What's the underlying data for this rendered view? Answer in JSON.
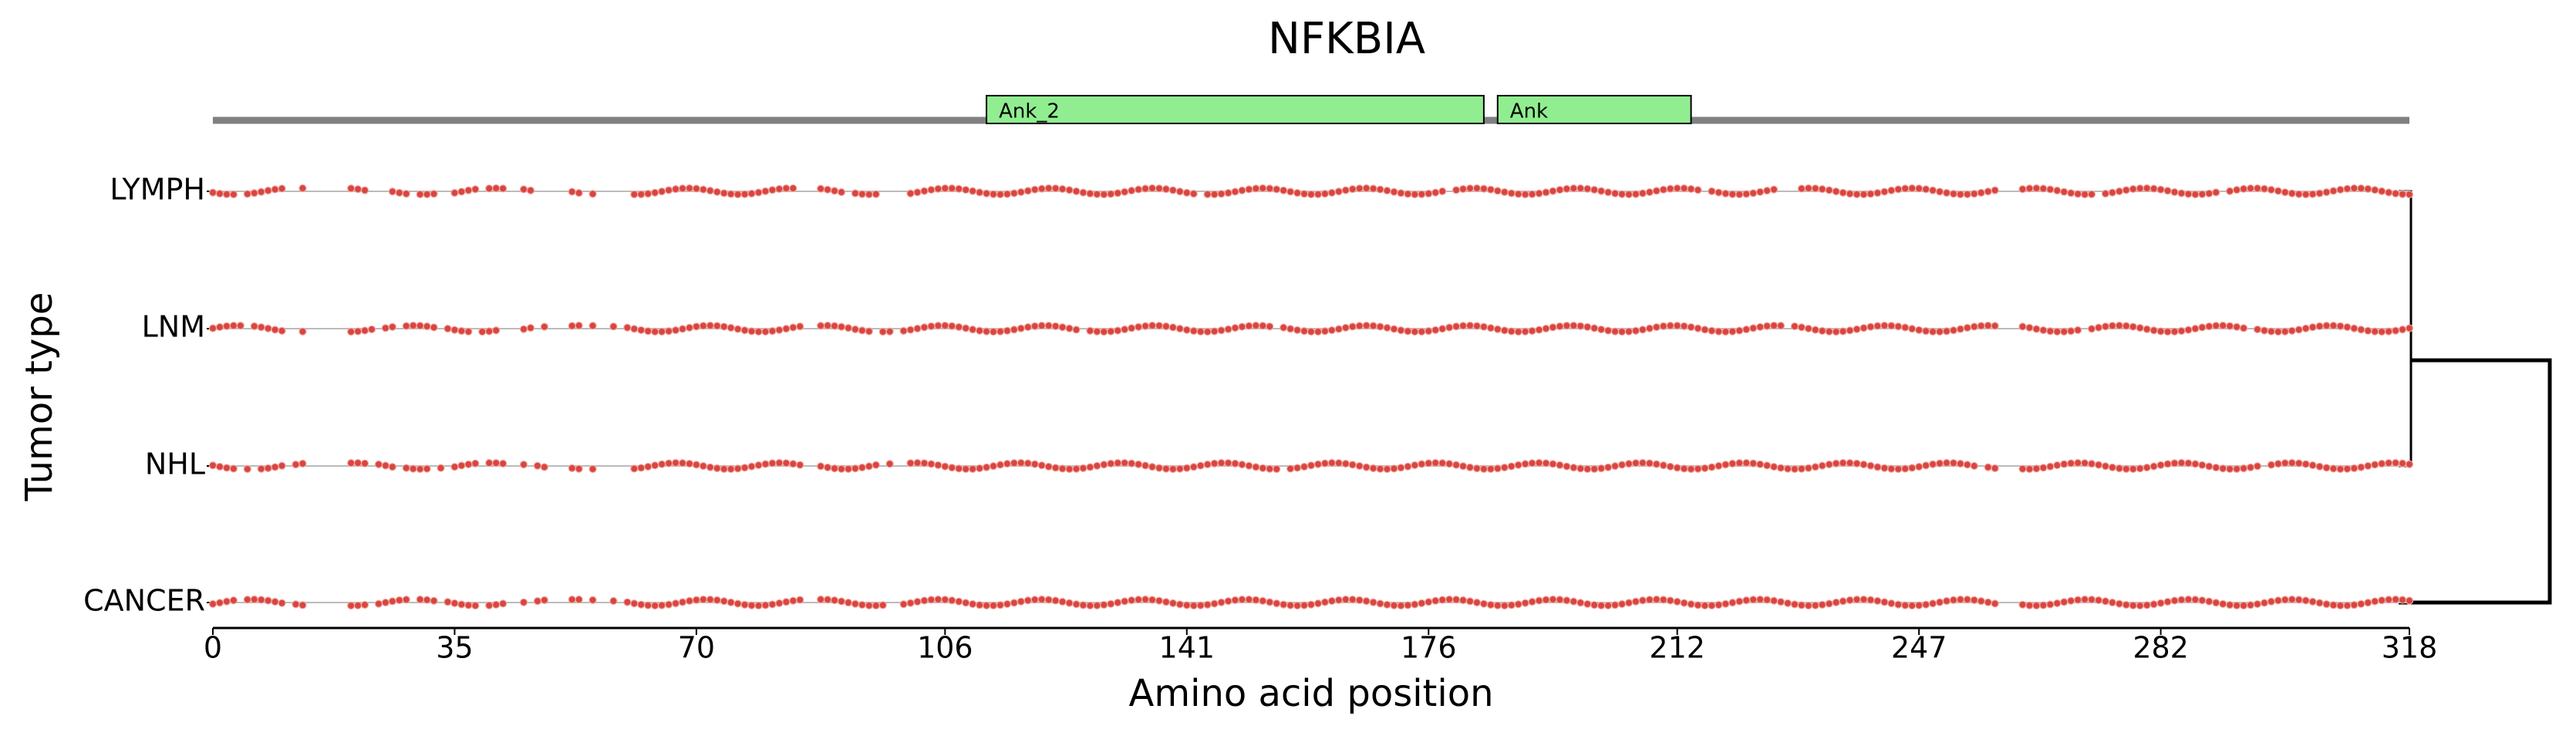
{
  "chart_data": {
    "type": "strip",
    "title": "NFKBIA",
    "x_label": "Amino acid position",
    "y_label": "Tumor type",
    "xlim": [
      0,
      318
    ],
    "xticks": [
      0,
      35,
      70,
      106,
      141,
      176,
      212,
      247,
      282,
      318
    ],
    "domains": [
      {
        "name": "Ank_2",
        "start": 112,
        "end": 184,
        "color": "#90ee90"
      },
      {
        "name": "Ank",
        "start": 186,
        "end": 214,
        "color": "#90ee90"
      }
    ],
    "series": [
      {
        "name": "LYMPH",
        "color": "#d9453f",
        "x": [
          0,
          1,
          2,
          3,
          5,
          6,
          7,
          8,
          9,
          10,
          13,
          20,
          21,
          22,
          26,
          27,
          28,
          30,
          31,
          32,
          35,
          36,
          37,
          38,
          40,
          41,
          42,
          45,
          46,
          52,
          53,
          55,
          61,
          62,
          63,
          64,
          65,
          66,
          67,
          68,
          69,
          70,
          71,
          72,
          73,
          74,
          75,
          76,
          77,
          78,
          79,
          80,
          81,
          82,
          83,
          84,
          88,
          89,
          90,
          91,
          93,
          94,
          95,
          96,
          101,
          102,
          103,
          104,
          105,
          106,
          107,
          108,
          109,
          110,
          111,
          112,
          113,
          114,
          115,
          116,
          117,
          118,
          119,
          120,
          121,
          122,
          123,
          124,
          125,
          126,
          127,
          128,
          129,
          130,
          131,
          132,
          133,
          134,
          135,
          136,
          137,
          138,
          139,
          140,
          141,
          142,
          144,
          145,
          146,
          147,
          148,
          149,
          150,
          151,
          152,
          153,
          154,
          155,
          156,
          157,
          158,
          159,
          160,
          161,
          162,
          163,
          164,
          165,
          166,
          167,
          168,
          169,
          170,
          171,
          172,
          173,
          174,
          175,
          176,
          177,
          178,
          180,
          181,
          182,
          183,
          184,
          185,
          186,
          187,
          188,
          189,
          190,
          191,
          192,
          193,
          194,
          195,
          196,
          197,
          198,
          199,
          200,
          201,
          202,
          203,
          204,
          205,
          206,
          207,
          208,
          209,
          210,
          211,
          212,
          213,
          214,
          215,
          217,
          218,
          219,
          220,
          221,
          222,
          223,
          224,
          225,
          226,
          230,
          231,
          232,
          233,
          234,
          235,
          236,
          237,
          238,
          239,
          240,
          241,
          242,
          243,
          244,
          245,
          246,
          247,
          248,
          249,
          250,
          251,
          252,
          253,
          254,
          255,
          256,
          257,
          258,
          262,
          263,
          264,
          265,
          266,
          267,
          268,
          269,
          270,
          271,
          272,
          274,
          275,
          276,
          277,
          278,
          279,
          280,
          281,
          282,
          283,
          284,
          285,
          286,
          287,
          288,
          289,
          290,
          292,
          293,
          294,
          295,
          296,
          297,
          298,
          299,
          300,
          301,
          302,
          303,
          304,
          305,
          306,
          307,
          308,
          309,
          310,
          311,
          312,
          313,
          314,
          315,
          316,
          317,
          318
        ]
      },
      {
        "name": "LNM",
        "color": "#d9453f",
        "x": [
          0,
          1,
          2,
          3,
          4,
          6,
          7,
          8,
          9,
          10,
          13,
          20,
          21,
          22,
          23,
          25,
          26,
          28,
          29,
          30,
          31,
          32,
          34,
          35,
          36,
          37,
          39,
          40,
          41,
          45,
          46,
          48,
          52,
          53,
          55,
          58,
          60,
          61,
          62,
          63,
          64,
          65,
          66,
          67,
          68,
          69,
          70,
          71,
          72,
          73,
          74,
          75,
          76,
          77,
          78,
          79,
          80,
          81,
          82,
          83,
          84,
          85,
          88,
          89,
          90,
          91,
          92,
          93,
          94,
          95,
          97,
          98,
          100,
          101,
          102,
          103,
          104,
          105,
          106,
          107,
          108,
          109,
          110,
          111,
          112,
          113,
          114,
          115,
          116,
          117,
          118,
          119,
          120,
          121,
          122,
          123,
          124,
          125,
          127,
          128,
          129,
          130,
          131,
          132,
          133,
          134,
          135,
          136,
          137,
          138,
          139,
          140,
          141,
          142,
          143,
          144,
          145,
          146,
          147,
          148,
          149,
          150,
          151,
          152,
          153,
          155,
          156,
          157,
          158,
          159,
          160,
          161,
          162,
          163,
          164,
          165,
          166,
          167,
          168,
          169,
          170,
          171,
          172,
          173,
          174,
          175,
          176,
          177,
          178,
          179,
          180,
          181,
          182,
          183,
          184,
          185,
          186,
          187,
          188,
          189,
          190,
          191,
          192,
          193,
          194,
          195,
          196,
          197,
          198,
          199,
          200,
          201,
          202,
          203,
          204,
          205,
          206,
          207,
          208,
          209,
          210,
          211,
          212,
          213,
          214,
          215,
          216,
          217,
          218,
          219,
          220,
          221,
          222,
          223,
          224,
          225,
          226,
          227,
          229,
          230,
          231,
          232,
          233,
          234,
          235,
          236,
          237,
          238,
          239,
          240,
          241,
          242,
          243,
          244,
          245,
          246,
          247,
          248,
          249,
          250,
          251,
          252,
          253,
          254,
          255,
          256,
          257,
          258,
          262,
          263,
          264,
          265,
          266,
          267,
          268,
          269,
          270,
          272,
          273,
          274,
          275,
          276,
          277,
          278,
          279,
          280,
          281,
          282,
          283,
          284,
          285,
          286,
          287,
          288,
          289,
          290,
          291,
          292,
          293,
          294,
          296,
          297,
          298,
          299,
          300,
          301,
          302,
          303,
          304,
          305,
          306,
          307,
          308,
          309,
          310,
          311,
          312,
          313,
          314,
          315,
          316,
          317,
          318
        ]
      },
      {
        "name": "NHL",
        "color": "#d9453f",
        "x": [
          0,
          1,
          2,
          3,
          5,
          7,
          8,
          9,
          10,
          12,
          13,
          20,
          21,
          22,
          24,
          25,
          26,
          28,
          29,
          30,
          31,
          33,
          35,
          36,
          37,
          38,
          40,
          41,
          42,
          45,
          47,
          48,
          52,
          53,
          55,
          61,
          62,
          63,
          64,
          65,
          66,
          67,
          68,
          69,
          70,
          71,
          72,
          73,
          74,
          75,
          76,
          77,
          78,
          79,
          80,
          81,
          82,
          83,
          84,
          85,
          88,
          89,
          90,
          91,
          92,
          93,
          94,
          95,
          96,
          98,
          101,
          102,
          103,
          104,
          105,
          106,
          107,
          108,
          109,
          110,
          111,
          112,
          113,
          114,
          115,
          116,
          117,
          118,
          119,
          120,
          121,
          122,
          123,
          124,
          125,
          126,
          127,
          128,
          129,
          130,
          131,
          132,
          133,
          134,
          135,
          136,
          137,
          138,
          139,
          140,
          141,
          142,
          143,
          144,
          145,
          146,
          147,
          148,
          149,
          150,
          151,
          152,
          153,
          154,
          156,
          157,
          158,
          159,
          160,
          161,
          162,
          163,
          164,
          165,
          166,
          167,
          168,
          169,
          170,
          171,
          172,
          173,
          174,
          175,
          176,
          177,
          178,
          179,
          180,
          181,
          182,
          183,
          184,
          185,
          186,
          187,
          188,
          189,
          190,
          191,
          192,
          193,
          194,
          195,
          196,
          197,
          198,
          199,
          200,
          201,
          202,
          203,
          204,
          205,
          206,
          207,
          208,
          209,
          210,
          211,
          212,
          213,
          214,
          215,
          216,
          217,
          218,
          219,
          220,
          221,
          222,
          223,
          224,
          225,
          226,
          227,
          228,
          229,
          230,
          231,
          232,
          233,
          234,
          235,
          236,
          237,
          238,
          239,
          240,
          241,
          242,
          243,
          244,
          245,
          246,
          247,
          248,
          249,
          250,
          251,
          252,
          253,
          254,
          255,
          257,
          258,
          262,
          263,
          264,
          265,
          266,
          267,
          268,
          269,
          270,
          271,
          272,
          273,
          274,
          275,
          276,
          277,
          278,
          279,
          280,
          281,
          282,
          283,
          284,
          285,
          286,
          287,
          288,
          289,
          290,
          291,
          292,
          293,
          294,
          295,
          296,
          298,
          299,
          300,
          301,
          302,
          303,
          304,
          305,
          306,
          307,
          308,
          309,
          310,
          311,
          312,
          313,
          314,
          315,
          316,
          317,
          318
        ]
      },
      {
        "name": "CANCER",
        "color": "#d9453f",
        "x": [
          0,
          1,
          2,
          3,
          5,
          6,
          7,
          8,
          9,
          10,
          12,
          13,
          20,
          21,
          22,
          24,
          25,
          26,
          27,
          28,
          30,
          31,
          32,
          34,
          35,
          36,
          37,
          38,
          40,
          41,
          42,
          45,
          47,
          48,
          52,
          53,
          55,
          58,
          60,
          61,
          62,
          63,
          64,
          65,
          66,
          67,
          68,
          69,
          70,
          71,
          72,
          73,
          74,
          75,
          76,
          77,
          78,
          79,
          80,
          81,
          82,
          83,
          84,
          85,
          88,
          89,
          90,
          91,
          92,
          93,
          94,
          95,
          96,
          97,
          100,
          101,
          102,
          103,
          104,
          105,
          106,
          107,
          108,
          109,
          110,
          111,
          112,
          113,
          114,
          115,
          116,
          117,
          118,
          119,
          120,
          121,
          122,
          123,
          124,
          125,
          126,
          127,
          128,
          129,
          130,
          131,
          132,
          133,
          134,
          135,
          136,
          137,
          138,
          139,
          140,
          141,
          142,
          143,
          144,
          145,
          146,
          147,
          148,
          149,
          150,
          151,
          152,
          153,
          154,
          155,
          156,
          157,
          158,
          159,
          160,
          161,
          162,
          163,
          164,
          165,
          166,
          167,
          168,
          169,
          170,
          171,
          172,
          173,
          174,
          175,
          176,
          177,
          178,
          179,
          180,
          181,
          182,
          183,
          184,
          185,
          186,
          187,
          188,
          189,
          190,
          191,
          192,
          193,
          194,
          195,
          196,
          197,
          198,
          199,
          200,
          201,
          202,
          203,
          204,
          205,
          206,
          207,
          208,
          209,
          210,
          211,
          212,
          213,
          214,
          215,
          216,
          217,
          218,
          219,
          220,
          221,
          222,
          223,
          224,
          225,
          226,
          227,
          228,
          229,
          230,
          231,
          232,
          233,
          234,
          235,
          236,
          237,
          238,
          239,
          240,
          241,
          242,
          243,
          244,
          245,
          246,
          247,
          248,
          249,
          250,
          251,
          252,
          253,
          254,
          255,
          256,
          257,
          258,
          262,
          263,
          264,
          265,
          266,
          267,
          268,
          269,
          270,
          271,
          272,
          273,
          274,
          275,
          276,
          277,
          278,
          279,
          280,
          281,
          282,
          283,
          284,
          285,
          286,
          287,
          288,
          289,
          290,
          291,
          292,
          293,
          294,
          295,
          296,
          297,
          298,
          299,
          300,
          301,
          302,
          303,
          304,
          305,
          306,
          307,
          308,
          309,
          310,
          311,
          312,
          313,
          314,
          315,
          316,
          317,
          318
        ]
      }
    ]
  }
}
